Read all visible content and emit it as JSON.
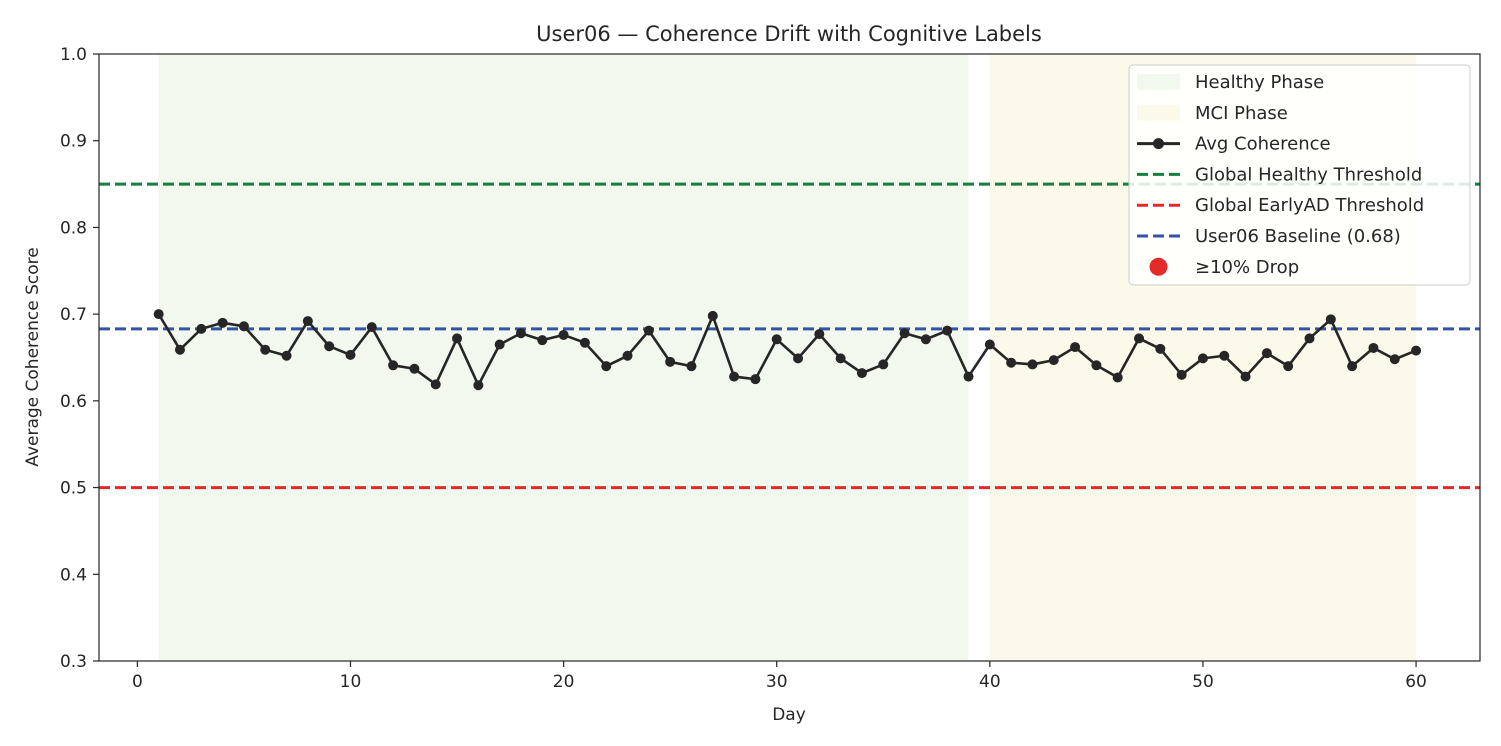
{
  "chart_data": {
    "type": "line",
    "title": "User06 — Coherence Drift with Cognitive Labels",
    "xlabel": "Day",
    "ylabel": "Average Coherence Score",
    "xlim": [
      -1.8,
      63
    ],
    "ylim": [
      0.3,
      1.0
    ],
    "xticks": [
      0,
      10,
      20,
      30,
      40,
      50,
      60
    ],
    "yticks": [
      "0.3",
      "0.4",
      "0.5",
      "0.6",
      "0.7",
      "0.8",
      "0.9",
      "1.0"
    ],
    "grid": false,
    "legend_position": "top-right",
    "phases": [
      {
        "name": "Healthy Phase",
        "start": 1,
        "end": 39,
        "color": "#f2f8ee"
      },
      {
        "name": "MCI Phase",
        "start": 40,
        "end": 60,
        "color": "#fbfaea"
      }
    ],
    "thresholds": [
      {
        "name": "Global Healthy Threshold",
        "value": 0.85,
        "color": "#15803d"
      },
      {
        "name": "Global EarlyAD Threshold",
        "value": 0.5,
        "color": "#e52a2a"
      },
      {
        "name": "User06 Baseline (0.68)",
        "value": 0.683,
        "color": "#3651a8"
      }
    ],
    "series": [
      {
        "name": "Avg Coherence",
        "color": "#262626",
        "x": [
          1,
          2,
          3,
          4,
          5,
          6,
          7,
          8,
          9,
          10,
          11,
          12,
          13,
          14,
          15,
          16,
          17,
          18,
          19,
          20,
          21,
          22,
          23,
          24,
          25,
          26,
          27,
          28,
          29,
          30,
          31,
          32,
          33,
          34,
          35,
          36,
          37,
          38,
          39,
          40,
          41,
          42,
          43,
          44,
          45,
          46,
          47,
          48,
          49,
          50,
          51,
          52,
          53,
          54,
          55,
          56,
          57,
          58,
          59,
          60
        ],
        "y": [
          0.7,
          0.659,
          0.683,
          0.69,
          0.686,
          0.659,
          0.652,
          0.692,
          0.663,
          0.653,
          0.685,
          0.641,
          0.637,
          0.619,
          0.672,
          0.618,
          0.665,
          0.678,
          0.67,
          0.676,
          0.667,
          0.64,
          0.652,
          0.681,
          0.645,
          0.64,
          0.698,
          0.628,
          0.625,
          0.671,
          0.649,
          0.677,
          0.649,
          0.632,
          0.642,
          0.678,
          0.671,
          0.681,
          0.628,
          0.665,
          0.644,
          0.642,
          0.647,
          0.662,
          0.641,
          0.627,
          0.672,
          0.66,
          0.63,
          0.649,
          0.652,
          0.628,
          0.655,
          0.64,
          0.672,
          0.694,
          0.64,
          0.661,
          0.648,
          0.658
        ]
      }
    ],
    "drop_marker": {
      "name": "≥10% Drop",
      "color": "#e52a2a",
      "points": []
    },
    "legend": [
      {
        "label": "Healthy Phase",
        "kind": "patch",
        "color": "#f2f8ee"
      },
      {
        "label": "MCI Phase",
        "kind": "patch",
        "color": "#fbfaea"
      },
      {
        "label": "Avg Coherence",
        "kind": "line-marker",
        "color": "#262626"
      },
      {
        "label": "Global Healthy Threshold",
        "kind": "dashed",
        "color": "#15803d"
      },
      {
        "label": "Global EarlyAD Threshold",
        "kind": "dashed",
        "color": "#e52a2a"
      },
      {
        "label": "User06 Baseline (0.68)",
        "kind": "dashed",
        "color": "#3651a8"
      },
      {
        "label": "≥10% Drop",
        "kind": "dot",
        "color": "#e52a2a"
      }
    ]
  }
}
